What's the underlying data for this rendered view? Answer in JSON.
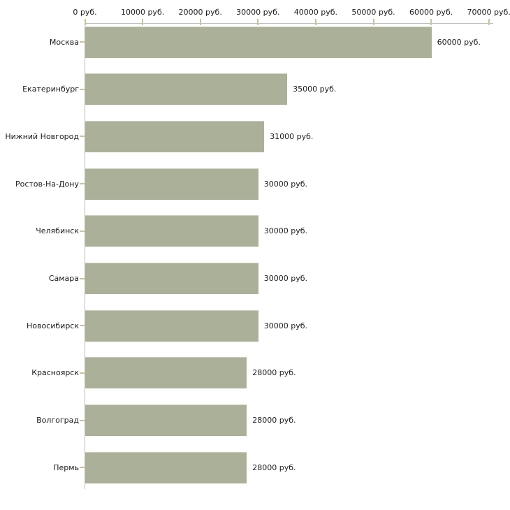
{
  "chart_data": {
    "type": "bar",
    "orientation": "horizontal",
    "title": "",
    "xlabel": "",
    "ylabel": "",
    "grid": false,
    "legend": "none",
    "x_axis": {
      "min": 0,
      "max": 70000,
      "tick_interval": 10000,
      "unit": "руб.",
      "tick_values": [
        0,
        10000,
        20000,
        30000,
        40000,
        50000,
        60000,
        70000
      ],
      "tick_labels": [
        "0 руб.",
        "10000 руб.",
        "20000 руб.",
        "30000 руб.",
        "40000 руб.",
        "50000 руб.",
        "60000 руб.",
        "70000 руб."
      ]
    },
    "categories": [
      "Москва",
      "Екатеринбург",
      "Нижний Новгород",
      "Ростов-На-Дону",
      "Челябинск",
      "Самара",
      "Новосибирск",
      "Красноярск",
      "Волгоград",
      "Пермь"
    ],
    "values": [
      60000,
      35000,
      31000,
      30000,
      30000,
      30000,
      30000,
      28000,
      28000,
      28000
    ],
    "value_labels": [
      "60000 руб.",
      "35000 руб.",
      "31000 руб.",
      "30000 руб.",
      "30000 руб.",
      "30000 руб.",
      "30000 руб.",
      "28000 руб.",
      "28000 руб.",
      "28000 руб."
    ],
    "colors": {
      "bar": "#abb198",
      "axis_line": "#bdbdbd",
      "tick_mark": "#c9c499",
      "text": "#1b1b1b",
      "background": "#ffffff"
    }
  }
}
